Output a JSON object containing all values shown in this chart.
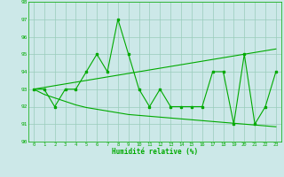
{
  "x": [
    0,
    1,
    2,
    3,
    4,
    5,
    6,
    7,
    8,
    9,
    10,
    11,
    12,
    13,
    14,
    15,
    16,
    17,
    18,
    19,
    20,
    21,
    22,
    23
  ],
  "y_main": [
    93,
    93,
    92,
    93,
    93,
    94,
    95,
    94,
    97,
    95,
    93,
    92,
    93,
    92,
    92,
    92,
    92,
    94,
    94,
    91,
    95,
    91,
    92,
    94
  ],
  "y_trend_upper": [
    93.0,
    93.1,
    93.2,
    93.3,
    93.4,
    93.5,
    93.6,
    93.7,
    93.8,
    93.9,
    94.0,
    94.1,
    94.2,
    94.3,
    94.4,
    94.5,
    94.6,
    94.7,
    94.8,
    94.9,
    95.0,
    95.1,
    95.2,
    95.3
  ],
  "y_trend_lower": [
    93.0,
    92.7,
    92.5,
    92.3,
    92.1,
    91.95,
    91.85,
    91.75,
    91.65,
    91.55,
    91.5,
    91.45,
    91.4,
    91.35,
    91.3,
    91.25,
    91.2,
    91.15,
    91.1,
    91.05,
    91.0,
    90.95,
    90.9,
    90.85
  ],
  "xlabel": "Humidité relative (%)",
  "ylim": [
    90,
    98
  ],
  "xlim": [
    -0.5,
    23.5
  ],
  "yticks": [
    90,
    91,
    92,
    93,
    94,
    95,
    96,
    97,
    98
  ],
  "xticks": [
    0,
    1,
    2,
    3,
    4,
    5,
    6,
    7,
    8,
    9,
    10,
    11,
    12,
    13,
    14,
    15,
    16,
    17,
    18,
    19,
    20,
    21,
    22,
    23
  ],
  "line_color": "#00aa00",
  "bg_color": "#cce8e8",
  "grid_color": "#99ccbb",
  "figsize": [
    3.2,
    2.0
  ],
  "dpi": 100
}
